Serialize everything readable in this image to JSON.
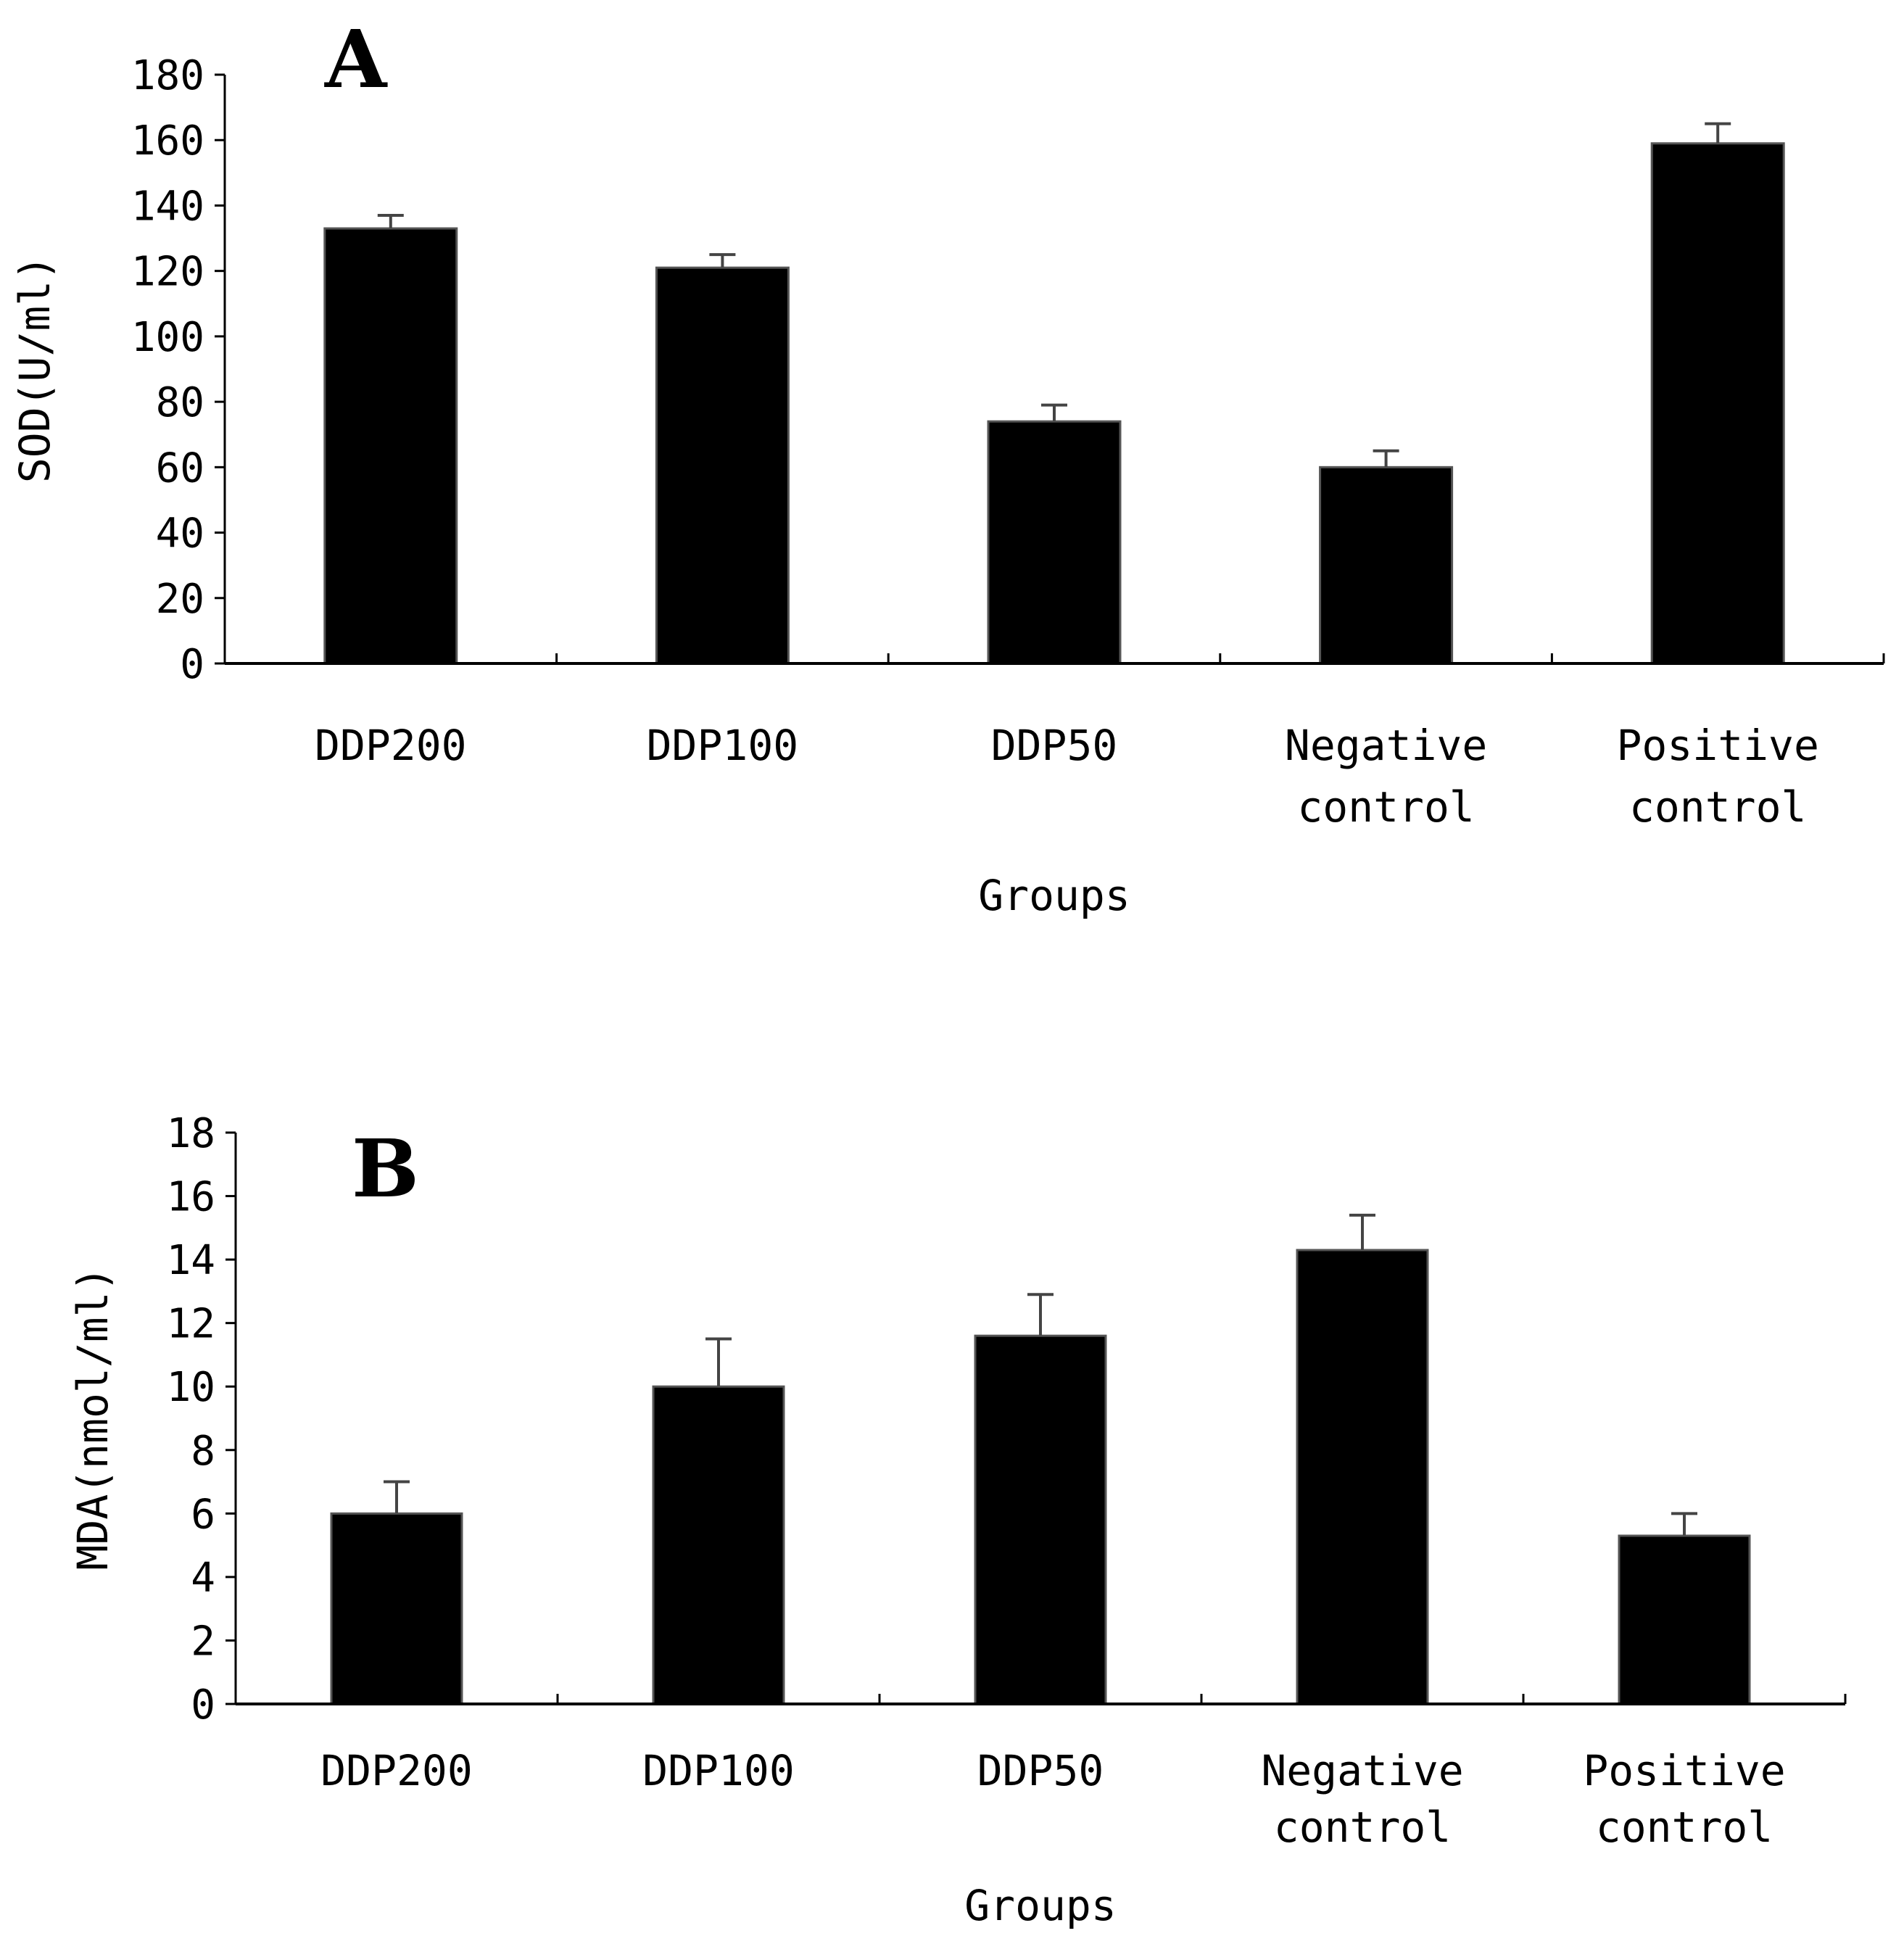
{
  "chart_data": [
    {
      "type": "bar",
      "panel": "A",
      "categories": [
        [
          "DDP200"
        ],
        [
          "DDP100"
        ],
        [
          "DDP50"
        ],
        [
          "Negative",
          "control"
        ],
        [
          "Positive",
          "control"
        ]
      ],
      "values": [
        133,
        121,
        74,
        60,
        159
      ],
      "errors": [
        4,
        4,
        5,
        5,
        6
      ],
      "xlabel": "Groups",
      "ylabel": "SOD(U/ml)",
      "ylim": [
        0,
        180
      ],
      "yticks": [
        "0",
        "20",
        "40",
        "60",
        "80",
        "100",
        "120",
        "140",
        "160",
        "180"
      ],
      "bar_color": "#000000",
      "grid": false
    },
    {
      "type": "bar",
      "panel": "B",
      "categories": [
        [
          "DDP200"
        ],
        [
          "DDP100"
        ],
        [
          "DDP50"
        ],
        [
          "Negative",
          "control"
        ],
        [
          "Positive",
          "control"
        ]
      ],
      "values": [
        6.0,
        10.0,
        11.6,
        14.3,
        5.3
      ],
      "errors": [
        1.0,
        1.5,
        1.3,
        1.1,
        0.7
      ],
      "xlabel": "Groups",
      "ylabel": "MDA(nmol/ml)",
      "ylim": [
        0,
        18
      ],
      "yticks": [
        "0",
        "2",
        "4",
        "6",
        "8",
        "10",
        "12",
        "14",
        "16",
        "18"
      ],
      "bar_color": "#000000",
      "grid": false
    }
  ]
}
